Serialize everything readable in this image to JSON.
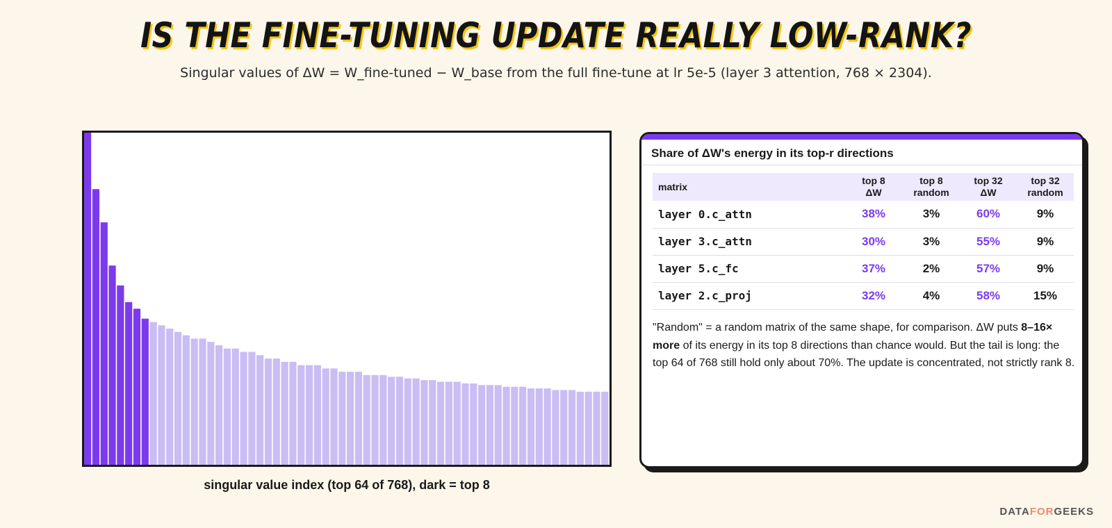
{
  "header": {
    "title": "IS THE FINE-TUNING UPDATE REALLY LOW-RANK?",
    "subtitle": "Singular values of ΔW = W_fine-tuned − W_base from the full fine-tune at lr 5e-5 (layer 3 attention, 768 × 2304)."
  },
  "chart_data": {
    "type": "bar",
    "xlabel": "singular value index (top 64 of 768), dark = top 8",
    "ylabel": "",
    "x": [
      1,
      2,
      3,
      4,
      5,
      6,
      7,
      8,
      9,
      10,
      11,
      12,
      13,
      14,
      15,
      16,
      17,
      18,
      19,
      20,
      21,
      22,
      23,
      24,
      25,
      26,
      27,
      28,
      29,
      30,
      31,
      32,
      33,
      34,
      35,
      36,
      37,
      38,
      39,
      40,
      41,
      42,
      43,
      44,
      45,
      46,
      47,
      48,
      49,
      50,
      51,
      52,
      53,
      54,
      55,
      56,
      57,
      58,
      59,
      60,
      61,
      62,
      63,
      64
    ],
    "values": [
      1.0,
      0.83,
      0.73,
      0.6,
      0.54,
      0.49,
      0.47,
      0.44,
      0.43,
      0.42,
      0.41,
      0.4,
      0.39,
      0.38,
      0.38,
      0.37,
      0.36,
      0.35,
      0.35,
      0.34,
      0.34,
      0.33,
      0.32,
      0.32,
      0.31,
      0.31,
      0.3,
      0.3,
      0.3,
      0.29,
      0.29,
      0.28,
      0.28,
      0.28,
      0.27,
      0.27,
      0.27,
      0.265,
      0.265,
      0.26,
      0.26,
      0.255,
      0.255,
      0.25,
      0.25,
      0.25,
      0.245,
      0.245,
      0.24,
      0.24,
      0.24,
      0.235,
      0.235,
      0.235,
      0.23,
      0.23,
      0.23,
      0.225,
      0.225,
      0.225,
      0.22,
      0.22,
      0.22,
      0.22
    ],
    "highlight_count": 8,
    "ylim": [
      0,
      1.0
    ],
    "colors": {
      "top": "#7c3aed",
      "rest": "#c9bdf3"
    },
    "grid": false
  },
  "card": {
    "title": "Share of ΔW's energy in its top-r directions",
    "columns": [
      "matrix",
      "top 8\nΔW",
      "top 8\nrandom",
      "top 32\nΔW",
      "top 32\nrandom"
    ],
    "rows": [
      {
        "matrix": "layer 0.c_attn",
        "top8_dw": "38%",
        "top8_random": "3%",
        "top32_dw": "60%",
        "top32_random": "9%"
      },
      {
        "matrix": "layer 3.c_attn",
        "top8_dw": "30%",
        "top8_random": "3%",
        "top32_dw": "55%",
        "top32_random": "9%"
      },
      {
        "matrix": "layer 5.c_fc",
        "top8_dw": "37%",
        "top8_random": "2%",
        "top32_dw": "57%",
        "top32_random": "9%"
      },
      {
        "matrix": "layer 2.c_proj",
        "top8_dw": "32%",
        "top8_random": "4%",
        "top32_dw": "58%",
        "top32_random": "15%"
      }
    ],
    "note_part1": "\"Random\" = a random matrix of the same shape, for comparison. ΔW puts ",
    "note_bold": "8–16× more",
    "note_part2": " of its energy in its top 8 directions than chance would. But the tail is long: the top 64 of 768 still hold only about 70%. The update is concentrated, not strictly rank 8.",
    "accent_color": "#7c3aed"
  },
  "brand": {
    "part1": "DATA",
    "part2": "FOR",
    "part3": "GEEKS"
  }
}
